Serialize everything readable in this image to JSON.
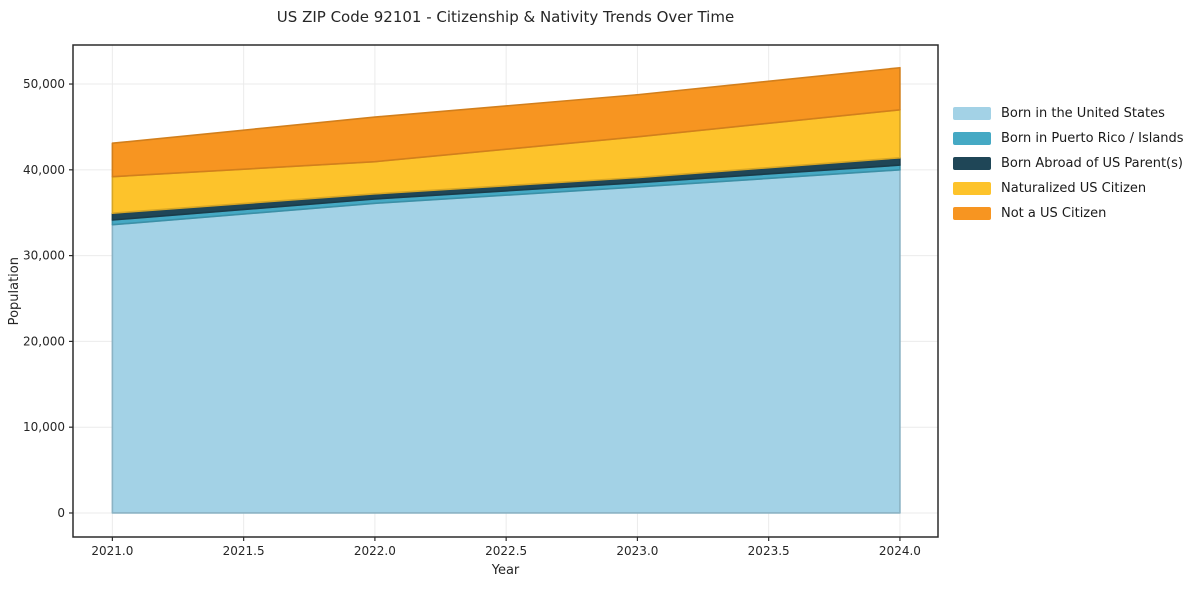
{
  "chart_data": {
    "type": "area",
    "stacked": true,
    "title": "US ZIP Code 92101 - Citizenship & Nativity Trends Over Time",
    "xlabel": "Year",
    "ylabel": "Population",
    "x": [
      2021,
      2022,
      2023,
      2024
    ],
    "series": [
      {
        "name": "Born in the United States",
        "color": "#a3d2e6",
        "values": [
          33600,
          36100,
          38000,
          40000
        ]
      },
      {
        "name": "Born in Puerto Rico / Islands",
        "color": "#45a9c4",
        "values": [
          550,
          500,
          500,
          550
        ]
      },
      {
        "name": "Born Abroad of US Parent(s)",
        "color": "#1f4657",
        "values": [
          800,
          600,
          600,
          850
        ]
      },
      {
        "name": "Naturalized US Citizen",
        "color": "#fdc32b",
        "values": [
          4250,
          3750,
          4750,
          5600
        ]
      },
      {
        "name": "Not a US Citizen",
        "color": "#f79521",
        "values": [
          3900,
          5200,
          4900,
          4900
        ]
      }
    ],
    "totals": [
      43100,
      46150,
      48750,
      51900
    ],
    "xlim": [
      2020.85,
      2024.145
    ],
    "ylim": [
      -2800,
      54550
    ],
    "xticks": [
      2021.0,
      2021.5,
      2022.0,
      2022.5,
      2023.0,
      2023.5,
      2024.0
    ],
    "xticklabels": [
      "2021.0",
      "2021.5",
      "2022.0",
      "2022.5",
      "2023.0",
      "2023.5",
      "2024.0"
    ],
    "yticks": [
      0,
      10000,
      20000,
      30000,
      40000,
      50000
    ],
    "yticklabels": [
      "0",
      "10,000",
      "20,000",
      "30,000",
      "40,000",
      "50,000"
    ],
    "grid": true,
    "legend_position": "right-outside",
    "colors": {
      "background": "#ffffff",
      "grid": "#ebebeb",
      "axis": "#2b2b2b",
      "text": "#262626"
    }
  }
}
